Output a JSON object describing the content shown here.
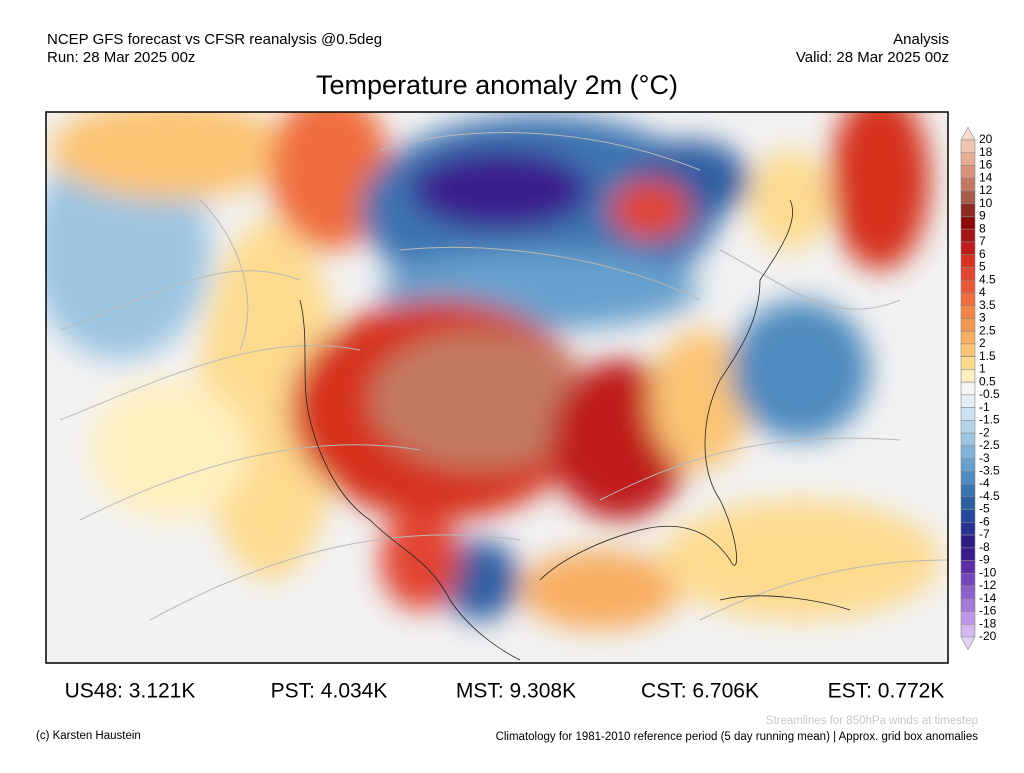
{
  "header": {
    "source": "NCEP GFS forecast vs CFSR reanalysis @0.5deg",
    "run": "Run: 28 Mar 2025 00z",
    "kind": "Analysis",
    "valid": "Valid: 28 Mar 2025 00z",
    "title": "Temperature anomaly 2m (°C)"
  },
  "colorbar": {
    "labels": [
      "20",
      "18",
      "16",
      "14",
      "12",
      "10",
      "9",
      "8",
      "7",
      "6",
      "5",
      "4.5",
      "4",
      "3.5",
      "3",
      "2.5",
      "2",
      "1.5",
      "1",
      "0.5",
      "-0.5",
      "-1",
      "-1.5",
      "-2",
      "-2.5",
      "-3",
      "-3.5",
      "-4",
      "-4.5",
      "-5",
      "-6",
      "-7",
      "-8",
      "-9",
      "-10",
      "-12",
      "-14",
      "-16",
      "-18",
      "-20"
    ],
    "colors": [
      "#f8dccd",
      "#f1c6b0",
      "#e7ad93",
      "#d9957c",
      "#c27a62",
      "#a6584a",
      "#8e2a22",
      "#8b0a0a",
      "#a51212",
      "#c01a1a",
      "#d6301f",
      "#e24530",
      "#ea5a36",
      "#f06d3e",
      "#f38249",
      "#f59854",
      "#f8ae62",
      "#fbc474",
      "#fdda8e",
      "#fff0bf",
      "#f5f5f5",
      "#e2eef8",
      "#cde2f1",
      "#b5d4ea",
      "#9cc5e2",
      "#82b3d8",
      "#68a0cd",
      "#4f8bc0",
      "#3c75b2",
      "#2f5fa3",
      "#27479a",
      "#2a3290",
      "#2d1e86",
      "#3a1c8c",
      "#5a2ea6",
      "#7446bb",
      "#8c60cb",
      "#a57bd8",
      "#bd98e4",
      "#d3b7ee",
      "#e2d2f4"
    ]
  },
  "stats": [
    "US48: 3.121K",
    "PST: 4.034K",
    "MST: 9.308K",
    "CST: 6.706K",
    "EST: 0.772K"
  ],
  "footer": {
    "note": "Streamlines for 850hPa winds at timestep",
    "credit": "(c) Karsten Haustein",
    "climatology": "Climatology for 1981-2010 reference period (5 day running mean) | Approx. grid box anomalies"
  }
}
